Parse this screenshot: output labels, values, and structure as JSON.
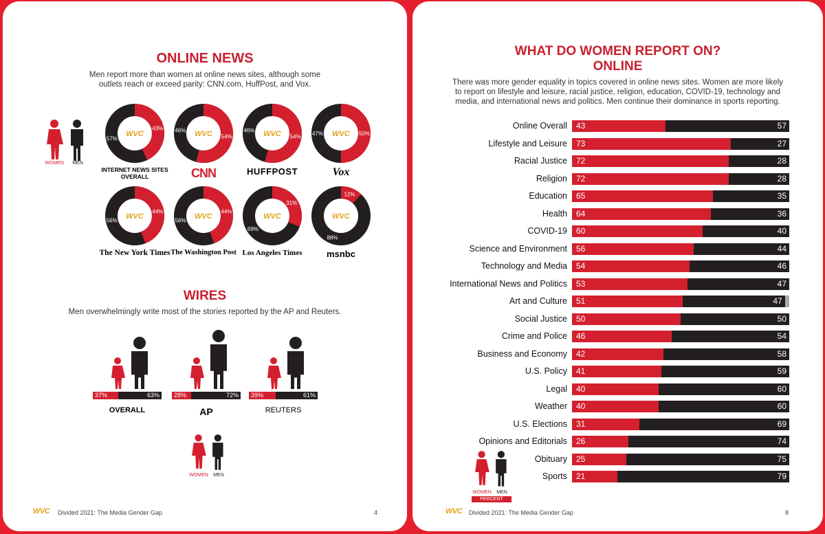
{
  "left": {
    "title": "ONLINE NEWS",
    "intro_line1": "Men report more than women at online news sites, although some",
    "intro_line2": "outlets reach or exceed parity: CNN.com, HuffPost, and Vox.",
    "legend": {
      "women": "WOMEN",
      "men": "MEN"
    },
    "center_logo": "WVC",
    "donuts": [
      {
        "name": "INTERNET NEWS SITES OVERALL",
        "label1": "INTERNET NEWS SITES",
        "label2": "OVERALL",
        "women": 43,
        "men": 57,
        "women_label": "43%",
        "men_label": "57%"
      },
      {
        "name": "CNN",
        "label1": "CNN",
        "label2": "",
        "women": 54,
        "men": 46,
        "women_label": "54%",
        "men_label": "46%"
      },
      {
        "name": "HUFFPOST",
        "label1": "HUFFPOST",
        "label2": "",
        "women": 54,
        "men": 46,
        "women_label": "54%",
        "men_label": "46%"
      },
      {
        "name": "Vox",
        "label1": "Vox",
        "label2": "",
        "women": 50,
        "men": 47,
        "women_label": "50%",
        "men_label": "47%"
      },
      {
        "name": "The New York Times",
        "label1": "The New York Times",
        "label2": "",
        "women": 44,
        "men": 56,
        "women_label": "44%",
        "men_label": "56%"
      },
      {
        "name": "The Washington Post",
        "label1": "The Washington Post",
        "label2": "",
        "women": 44,
        "men": 56,
        "women_label": "44%",
        "men_label": "56%"
      },
      {
        "name": "Los Angeles Times",
        "label1": "Los Angeles Times",
        "label2": "",
        "women": 31,
        "men": 69,
        "women_label": "31%",
        "men_label": "69%"
      },
      {
        "name": "msnbc",
        "label1": "msnbc",
        "label2": "",
        "women": 12,
        "men": 88,
        "women_label": "12%",
        "men_label": "88%"
      }
    ],
    "wires_title": "WIRES",
    "wires_intro": "Men overwhelmingly write most of the stories reported by the AP and Reuters.",
    "wires": [
      {
        "name": "OVERALL",
        "women": 37,
        "men": 63,
        "women_label": "37%",
        "men_label": "63%"
      },
      {
        "name": "AP",
        "women": 28,
        "men": 72,
        "women_label": "28%",
        "men_label": "72%"
      },
      {
        "name": "REUTERS",
        "women": 39,
        "men": 61,
        "women_label": "39%",
        "men_label": "61%"
      }
    ],
    "footer_text": "Divided 2021: The Media Gender Gap",
    "page_number": "4"
  },
  "right": {
    "title_line1": "WHAT DO WOMEN REPORT ON?",
    "title_line2": "ONLINE",
    "intro_line1": "There was more gender equality in topics covered in online news sites. Women are more likely",
    "intro_line2": "to report on lifestyle and leisure, racial justice, religion, education, COVID-19, technology and",
    "intro_line3": "media, and international news and politics. Men continue their dominance in sports reporting.",
    "legend": {
      "women": "WOMEN",
      "men": "MEN",
      "percent": "PERCENT"
    },
    "footer_text": "Divided 2021: The Media Gender Gap",
    "page_number": "8"
  },
  "colors": {
    "women": "#d4202e",
    "men": "#231f20",
    "accent": "#c8202f"
  },
  "chart_data": {
    "type": "bar",
    "orientation": "horizontal-stacked",
    "title": "WHAT DO WOMEN REPORT ON? ONLINE",
    "categories": [
      "Online Overall",
      "Lifestyle and Leisure",
      "Racial Justice",
      "Religion",
      "Education",
      "Health",
      "COVID-19",
      "Science and Environment",
      "Technology and Media",
      "International News and Politics",
      "Art and Culture",
      "Social Justice",
      "Crime and Police",
      "Business and Economy",
      "U.S. Policy",
      "Legal",
      "Weather",
      "U.S. Elections",
      "Opinions and Editorials",
      "Obituary",
      "Sports"
    ],
    "series": [
      {
        "name": "WOMEN",
        "values": [
          43,
          73,
          72,
          72,
          65,
          64,
          60,
          56,
          54,
          53,
          51,
          50,
          46,
          42,
          41,
          40,
          40,
          31,
          26,
          25,
          21
        ]
      },
      {
        "name": "MEN",
        "values": [
          57,
          27,
          28,
          28,
          35,
          36,
          40,
          44,
          46,
          47,
          47,
          50,
          54,
          58,
          59,
          60,
          60,
          69,
          74,
          75,
          79
        ]
      }
    ],
    "xlim": [
      0,
      100
    ],
    "units": "PERCENT"
  }
}
